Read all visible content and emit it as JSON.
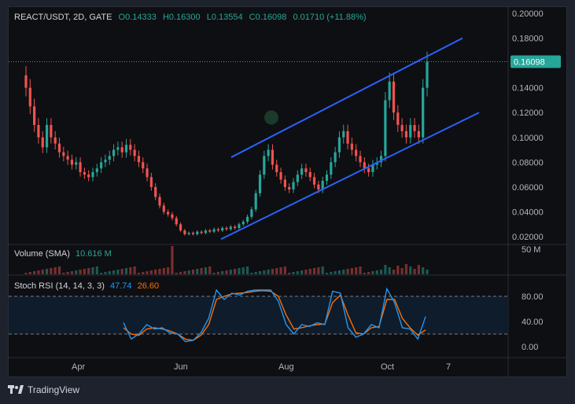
{
  "legend": {
    "symbol": "REACT/USDT, 2D, GATE",
    "open": "O0.14333",
    "high": "H0.16300",
    "low": "L0.13554",
    "close": "C0.16098",
    "change": "0.01710 (+11.88%)"
  },
  "volume_legend": {
    "label": "Volume (SMA)",
    "value": "10.616 M",
    "scale": "50 M"
  },
  "rsi_legend": {
    "label": "Stoch RSI (14, 14, 3, 3)",
    "k": "47.74",
    "d": "26.60"
  },
  "price_axis": {
    "ticks": [
      "0.20000",
      "0.18000",
      "0.16000",
      "0.14000",
      "0.12000",
      "0.10000",
      "0.08000",
      "0.06000",
      "0.04000",
      "0.02000"
    ],
    "last": "0.16098"
  },
  "rsi_axis": {
    "ticks": [
      "80.00",
      "40.00",
      "0.00"
    ]
  },
  "time_axis": {
    "ticks": [
      "Apr",
      "Jun",
      "Aug",
      "Oct",
      "7"
    ]
  },
  "footer": {
    "brand": "TradingView"
  },
  "colors": {
    "up": "#26a69a",
    "down": "#ef5350",
    "channel": "#2962ff",
    "k_line": "#2196f3",
    "d_line": "#ff6d00",
    "bg": "#0e0f12"
  },
  "chart_data": {
    "type": "candlestick",
    "ylim": [
      0.015,
      0.205
    ],
    "channel": {
      "upper": [
        [
          0.084,
          0.18
        ]
      ],
      "lower": [
        [
          0.018,
          0.12
        ]
      ]
    },
    "closes": [
      0.14,
      0.125,
      0.11,
      0.1,
      0.092,
      0.11,
      0.1,
      0.095,
      0.088,
      0.085,
      0.082,
      0.078,
      0.08,
      0.072,
      0.07,
      0.068,
      0.072,
      0.075,
      0.08,
      0.082,
      0.085,
      0.09,
      0.092,
      0.088,
      0.094,
      0.09,
      0.085,
      0.08,
      0.075,
      0.068,
      0.06,
      0.052,
      0.045,
      0.04,
      0.038,
      0.035,
      0.03,
      0.025,
      0.022,
      0.023,
      0.022,
      0.024,
      0.023,
      0.025,
      0.024,
      0.026,
      0.025,
      0.027,
      0.026,
      0.028,
      0.027,
      0.03,
      0.032,
      0.036,
      0.042,
      0.055,
      0.07,
      0.085,
      0.09,
      0.078,
      0.072,
      0.066,
      0.06,
      0.058,
      0.064,
      0.07,
      0.075,
      0.072,
      0.068,
      0.062,
      0.058,
      0.065,
      0.07,
      0.08,
      0.088,
      0.1,
      0.105,
      0.095,
      0.09,
      0.085,
      0.08,
      0.075,
      0.072,
      0.078,
      0.08,
      0.085,
      0.13,
      0.145,
      0.12,
      0.11,
      0.105,
      0.1,
      0.11,
      0.105,
      0.1,
      0.14,
      0.161
    ],
    "stoch_rsi_k": [
      38,
      12,
      20,
      35,
      28,
      30,
      22,
      20,
      8,
      10,
      22,
      45,
      90,
      75,
      85,
      82,
      88,
      90,
      90,
      90,
      72,
      35,
      20,
      35,
      32,
      38,
      35,
      88,
      85,
      30,
      15,
      20,
      35,
      30,
      92,
      70,
      30,
      28,
      12,
      47.74
    ],
    "stoch_rsi_d": [
      30,
      20,
      18,
      28,
      30,
      28,
      25,
      20,
      12,
      10,
      18,
      35,
      75,
      80,
      84,
      85,
      86,
      88,
      89,
      88,
      80,
      50,
      28,
      30,
      33,
      35,
      36,
      70,
      82,
      50,
      22,
      20,
      30,
      32,
      75,
      75,
      45,
      30,
      18,
      26.6
    ]
  }
}
